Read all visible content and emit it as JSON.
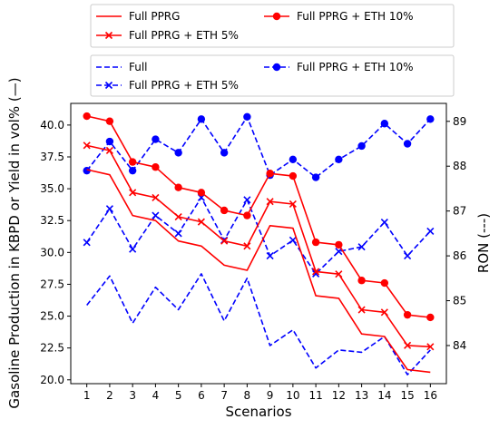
{
  "chart_data": {
    "type": "line",
    "xlabel": "Scenarios",
    "ylabel_left": "Gasoline Production in KBPD or Yield in vol% (—)",
    "ylabel_right": "RON (---)",
    "x": [
      1,
      2,
      3,
      4,
      5,
      6,
      7,
      8,
      9,
      10,
      11,
      12,
      13,
      14,
      15,
      16
    ],
    "xlim": [
      0.3,
      16.7
    ],
    "ylim_left": [
      19.7,
      41.7
    ],
    "ylim_right": [
      83.15,
      89.4
    ],
    "yticks_left": [
      "20.0",
      "22.5",
      "25.0",
      "27.5",
      "30.0",
      "32.5",
      "35.0",
      "37.5",
      "40.0"
    ],
    "yticks_right": [
      "84",
      "85",
      "86",
      "87",
      "88",
      "89"
    ],
    "legend_top": [
      "Full PPRG",
      "Full PPRG + ETH 10%",
      "Full PPRG + ETH 5%"
    ],
    "legend_bottom": [
      "Full",
      "Full PPRG + ETH 10%",
      "Full PPRG + ETH 5%"
    ],
    "series_left": [
      {
        "name": "Full PPRG",
        "color": "#ff0000",
        "marker": "none",
        "dash": "solid",
        "values": [
          36.5,
          36.1,
          32.9,
          32.5,
          30.9,
          30.5,
          29.0,
          28.6,
          32.1,
          31.9,
          26.6,
          26.4,
          23.6,
          23.4,
          20.8,
          20.6
        ]
      },
      {
        "name": "Full PPRG + ETH 5%",
        "color": "#ff0000",
        "marker": "x",
        "dash": "solid",
        "values": [
          38.4,
          38.0,
          34.7,
          34.3,
          32.8,
          32.4,
          30.9,
          30.5,
          34.0,
          33.8,
          28.5,
          28.3,
          25.5,
          25.3,
          22.7,
          22.6
        ]
      },
      {
        "name": "Full PPRG + ETH 10%",
        "color": "#ff0000",
        "marker": "o",
        "dash": "solid",
        "values": [
          40.7,
          40.3,
          37.1,
          36.7,
          35.1,
          34.7,
          33.3,
          32.9,
          36.2,
          36.0,
          30.8,
          30.6,
          27.8,
          27.6,
          25.1,
          24.9
        ]
      }
    ],
    "series_right": [
      {
        "name": "Full",
        "color": "#0000ff",
        "marker": "none",
        "dash": "dashed",
        "values": [
          84.9,
          85.55,
          84.5,
          85.3,
          84.8,
          85.6,
          84.55,
          85.5,
          84.0,
          84.35,
          83.5,
          83.9,
          83.85,
          84.2,
          83.35,
          83.9
        ]
      },
      {
        "name": "Full PPRG + ETH 5%",
        "color": "#0000ff",
        "marker": "x",
        "dash": "dashed",
        "values": [
          86.3,
          87.05,
          86.15,
          86.9,
          86.5,
          87.3,
          86.35,
          87.25,
          86.0,
          86.35,
          85.6,
          86.1,
          86.2,
          86.75,
          86.0,
          86.55
        ]
      },
      {
        "name": "Full PPRG + ETH 10%",
        "color": "#0000ff",
        "marker": "o",
        "dash": "dashed",
        "values": [
          87.9,
          88.55,
          87.9,
          88.6,
          88.3,
          89.05,
          88.3,
          89.1,
          87.8,
          88.15,
          87.75,
          88.15,
          88.45,
          88.95,
          88.5,
          89.05
        ]
      }
    ]
  }
}
